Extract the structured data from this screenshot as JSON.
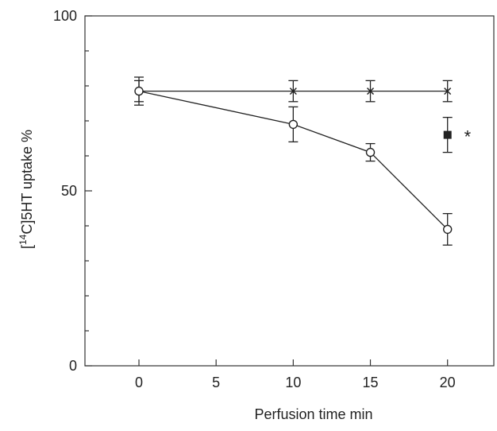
{
  "chart_data": {
    "type": "line",
    "title": "",
    "xlabel": "Perfusion time  min",
    "ylabel_parts": {
      "open": "[",
      "superscript": "14",
      "rest": "C]5HT uptake %"
    },
    "xlim": [
      -3.5,
      23
    ],
    "ylim": [
      0,
      100
    ],
    "x_ticks": [
      0,
      5,
      10,
      15,
      20
    ],
    "y_ticks": [
      0,
      50,
      100
    ],
    "y_minor_step": 10,
    "grid": false,
    "legend": "none",
    "series": [
      {
        "marker": "cross",
        "connected": true,
        "color": "#222222",
        "points": [
          {
            "x": 0,
            "y": 78.5,
            "err": 3
          },
          {
            "x": 10,
            "y": 78.5,
            "err": 3
          },
          {
            "x": 15,
            "y": 78.5,
            "err": 3
          },
          {
            "x": 20,
            "y": 78.5,
            "err": 3
          }
        ]
      },
      {
        "marker": "open-circle",
        "connected": true,
        "color": "#222222",
        "points": [
          {
            "x": 0,
            "y": 78.5,
            "err": 4
          },
          {
            "x": 10,
            "y": 69,
            "err": 5
          },
          {
            "x": 15,
            "y": 61,
            "err": 2.5
          },
          {
            "x": 20,
            "y": 39,
            "err": 4.5
          }
        ]
      },
      {
        "marker": "filled-square",
        "connected": false,
        "color": "#222222",
        "points": [
          {
            "x": 20,
            "y": 66,
            "err": 5
          }
        ]
      }
    ],
    "annotations": [
      {
        "text": "*",
        "x": 21.3,
        "y": 66
      }
    ]
  }
}
